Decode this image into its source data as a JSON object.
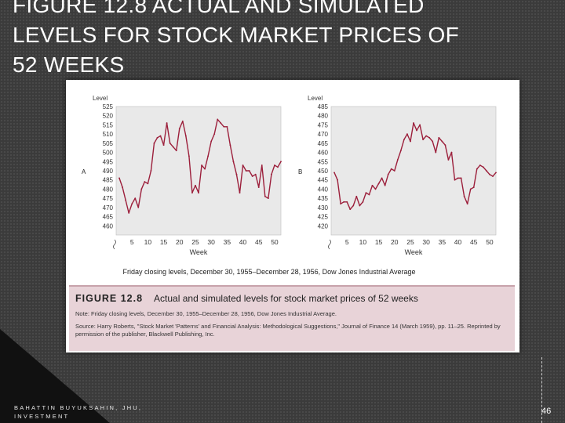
{
  "slide": {
    "title": "FIGURE 12.8 ACTUAL AND SIMULATED\nLEVELS FOR STOCK MARKET PRICES OF\n52 WEEKS",
    "footer_author": "BAHATTIN BUYUKSAHIN, JHU,\nINVESTMENT",
    "page_number": "46"
  },
  "figure": {
    "x_caption": "Friday closing levels, December 30, 1955–December 28, 1956, Dow Jones Industrial Average",
    "caption_label": "FIGURE 12.8",
    "caption_title": "Actual and simulated levels for stock market prices of 52 weeks",
    "note": "Note: Friday closing levels, December 30, 1955–December 28, 1956, Dow Jones Industrial Average.",
    "source": "Source: Harry Roberts, \"Stock Market 'Patterns' and Financial Analysis: Methodological Suggestions,\" Journal of Finance 14 (March 1959), pp. 11–25. Reprinted by permission of the publisher, Blackwell Publishing, Inc."
  },
  "colors": {
    "series": "#9c1f3b",
    "plot_bg": "#e9e9e9",
    "caption_bg": "#e8d3d8"
  },
  "chart_data": [
    {
      "type": "line",
      "panel_label": "A",
      "ylabel": "Level",
      "xlabel": "Week",
      "ylim": [
        455,
        525
      ],
      "yticks": [
        460,
        465,
        470,
        475,
        480,
        485,
        490,
        495,
        500,
        505,
        510,
        515,
        520,
        525
      ],
      "xlim": [
        0,
        52
      ],
      "xticks": [
        5,
        10,
        15,
        20,
        25,
        30,
        35,
        40,
        45,
        50
      ],
      "grid": false,
      "x": [
        1,
        2,
        3,
        4,
        5,
        6,
        7,
        8,
        9,
        10,
        11,
        12,
        13,
        14,
        15,
        16,
        17,
        18,
        19,
        20,
        21,
        22,
        23,
        24,
        25,
        26,
        27,
        28,
        29,
        30,
        31,
        32,
        33,
        34,
        35,
        36,
        37,
        38,
        39,
        40,
        41,
        42,
        43,
        44,
        45,
        46,
        47,
        48,
        49,
        50,
        51,
        52
      ],
      "values": [
        486,
        481,
        474,
        467,
        472,
        475,
        470,
        480,
        484,
        483,
        490,
        505,
        508,
        509,
        504,
        516,
        505,
        503,
        501,
        513,
        517,
        509,
        498,
        478,
        482,
        478,
        493,
        491,
        498,
        506,
        510,
        518,
        516,
        514,
        514,
        504,
        495,
        488,
        478,
        493,
        490,
        490,
        487,
        488,
        481,
        493,
        476,
        475,
        488,
        493,
        492,
        495
      ]
    },
    {
      "type": "line",
      "panel_label": "B",
      "ylabel": "Level",
      "xlabel": "Week",
      "ylim": [
        415,
        485
      ],
      "yticks": [
        420,
        425,
        430,
        435,
        440,
        445,
        450,
        455,
        460,
        465,
        470,
        475,
        480,
        485
      ],
      "xlim": [
        0,
        52
      ],
      "xticks": [
        5,
        10,
        15,
        20,
        25,
        30,
        35,
        40,
        45,
        50
      ],
      "grid": false,
      "x": [
        1,
        2,
        3,
        4,
        5,
        6,
        7,
        8,
        9,
        10,
        11,
        12,
        13,
        14,
        15,
        16,
        17,
        18,
        19,
        20,
        21,
        22,
        23,
        24,
        25,
        26,
        27,
        28,
        29,
        30,
        31,
        32,
        33,
        34,
        35,
        36,
        37,
        38,
        39,
        40,
        41,
        42,
        43,
        44,
        45,
        46,
        47,
        48,
        49,
        50,
        51,
        52
      ],
      "values": [
        449,
        445,
        432,
        433,
        433,
        429,
        431,
        436,
        431,
        433,
        438,
        437,
        442,
        440,
        443,
        446,
        442,
        448,
        451,
        450,
        456,
        461,
        467,
        470,
        466,
        476,
        472,
        475,
        467,
        469,
        468,
        466,
        460,
        468,
        466,
        464,
        456,
        460,
        445,
        446,
        446,
        436,
        432,
        440,
        441,
        451,
        453,
        452,
        450,
        448,
        447,
        449
      ]
    }
  ]
}
